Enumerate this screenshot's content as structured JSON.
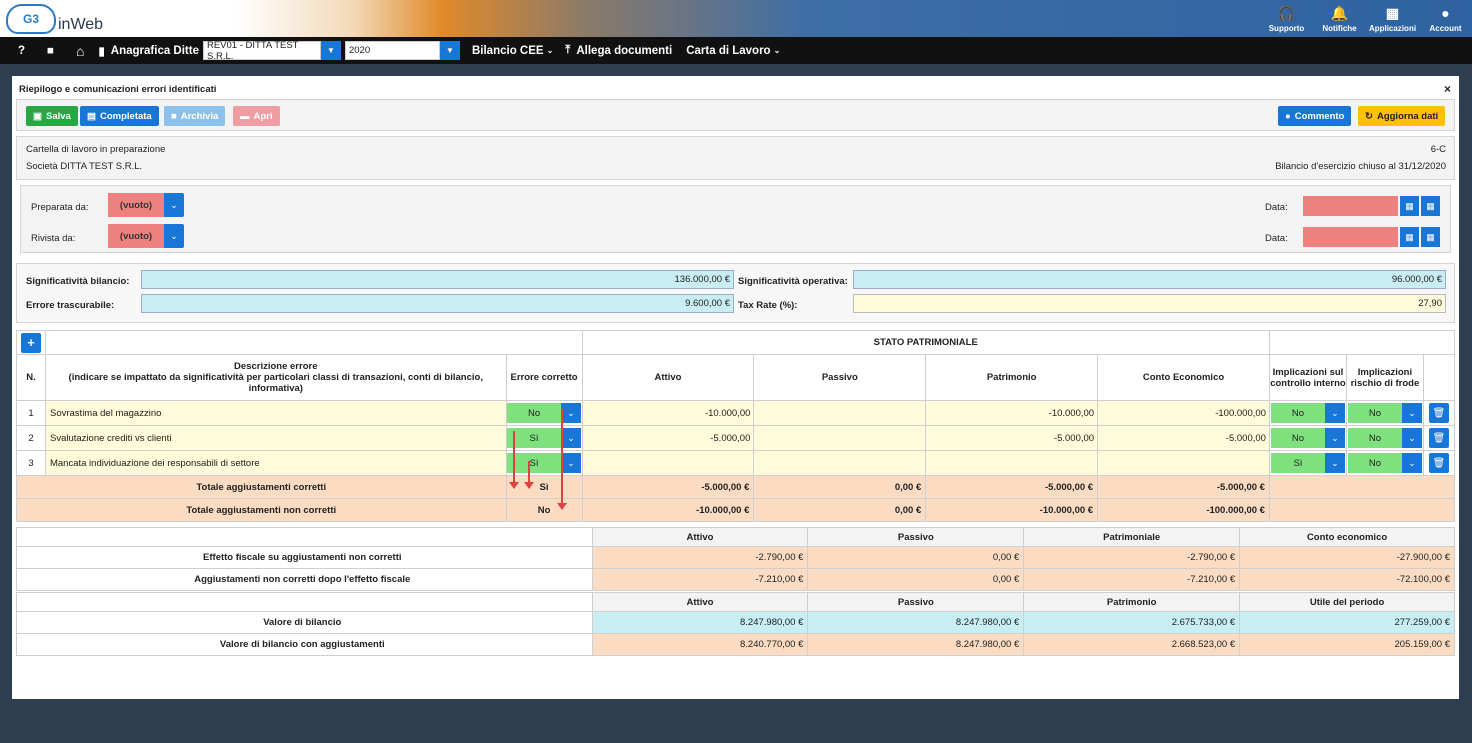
{
  "app": {
    "logo_text": "inWeb",
    "logo_mark": "G3"
  },
  "top_icons": [
    {
      "label": "Supporto",
      "icon": "headset-icon",
      "glyph": "🎧"
    },
    {
      "label": "Notifiche",
      "icon": "bell-icon",
      "glyph": "🔔"
    },
    {
      "label": "Applicazioni",
      "icon": "grid-icon",
      "glyph": "▦"
    },
    {
      "label": "Account",
      "icon": "user-icon",
      "glyph": "●"
    }
  ],
  "nav": {
    "help": "?",
    "video": "■",
    "home": "⌂",
    "anagrafica": "Anagrafica Ditte",
    "company_select": "REV01 - DITTA TEST S.R.L.",
    "year_select": "2020",
    "bilancio": "Bilancio CEE",
    "allega": "Allega documenti",
    "carta": "Carta di Lavoro"
  },
  "panel": {
    "title": "Riepilogo e comunicazioni errori identificati",
    "close": "×",
    "buttons": {
      "salva": "Salva",
      "completata": "Completata",
      "archivia": "Archivia",
      "apri": "Apri",
      "commento": "Commento",
      "aggiorna": "Aggiorna dati"
    },
    "info": {
      "stato": "Cartella di lavoro in preparazione",
      "codice": "6-C",
      "societa": "Società DITTA TEST S.R.L.",
      "bilancio": "Bilancio d'esercizio chiuso al 31/12/2020"
    },
    "prep": {
      "preparata_label": "Preparata da:",
      "rivista_label": "Rivista da:",
      "value": "(vuoto)",
      "data_label": "Data:"
    },
    "signif": {
      "bil_label": "Significatività bilancio:",
      "bil_value": "136.000,00 €",
      "op_label": "Significatività operativa:",
      "op_value": "96.000,00 €",
      "err_label": "Errore trascurabile:",
      "err_value": "9.600,00 €",
      "tax_label": "Tax Rate (%):",
      "tax_value": "27,90"
    }
  },
  "errors_table": {
    "add": "+",
    "group_header": "STATO PATRIMONIALE",
    "headers": {
      "n": "N.",
      "descr": "Descrizione errore\n(indicare se impattato da significatività per particolari classi di transazioni, conti di bilancio, informativa)",
      "corretto": "Errore corretto",
      "attivo": "Attivo",
      "passivo": "Passivo",
      "patrimonio": "Patrimonio",
      "ce": "Conto Economico",
      "impl_ci": "Implicazioni sul controllo interno",
      "impl_fr": "Implicazioni rischio di frode"
    },
    "rows": [
      {
        "n": "1",
        "descr": "Sovrastima del magazzino",
        "corretto": "No",
        "attivo": "-10.000,00",
        "passivo": "",
        "patrimonio": "-10.000,00",
        "ce": "-100.000,00",
        "ci": "No",
        "fr": "No"
      },
      {
        "n": "2",
        "descr": "Svalutazione crediti vs clienti",
        "corretto": "Sì",
        "attivo": "-5.000,00",
        "passivo": "",
        "patrimonio": "-5.000,00",
        "ce": "-5.000,00",
        "ci": "No",
        "fr": "No"
      },
      {
        "n": "3",
        "descr": "Mancata individuazione dei responsabili di settore",
        "corretto": "Sì",
        "attivo": "",
        "passivo": "",
        "patrimonio": "",
        "ce": "",
        "ci": "Sì",
        "fr": "No"
      }
    ],
    "totals": [
      {
        "label": "Totale aggiustamenti corretti",
        "flag": "Sì",
        "attivo": "-5.000,00 €",
        "passivo": "0,00 €",
        "patrimonio": "-5.000,00 €",
        "ce": "-5.000,00 €"
      },
      {
        "label": "Totale aggiustamenti non corretti",
        "flag": "No",
        "attivo": "-10.000,00 €",
        "passivo": "0,00 €",
        "patrimonio": "-10.000,00 €",
        "ce": "-100.000,00 €"
      }
    ]
  },
  "fiscal_table": {
    "headers": [
      "Attivo",
      "Passivo",
      "Patrimoniale",
      "Conto economico"
    ],
    "rows": [
      {
        "label": "Effetto fiscale su aggiustamenti non corretti",
        "v": [
          "-2.790,00 €",
          "0,00 €",
          "-2.790,00 €",
          "-27.900,00 €"
        ]
      },
      {
        "label": "Aggiustamenti non corretti dopo l'effetto fiscale",
        "v": [
          "-7.210,00 €",
          "0,00 €",
          "-7.210,00 €",
          "-72.100,00 €"
        ]
      }
    ]
  },
  "value_table": {
    "headers": [
      "Attivo",
      "Passivo",
      "Patrimonio",
      "Utile del periodo"
    ],
    "rows": [
      {
        "label": "Valore di bilancio",
        "v": [
          "8.247.980,00 €",
          "8.247.980,00 €",
          "2.675.733,00 €",
          "277.259,00 €"
        ]
      },
      {
        "label": "Valore di bilancio con aggiustamenti",
        "v": [
          "8.240.770,00 €",
          "8.247.980,00 €",
          "2.668.523,00 €",
          "205.159,00 €"
        ]
      }
    ]
  },
  "colors": {
    "primary": "#1877d6",
    "success": "#28a745",
    "warning": "#ffc107",
    "danger_light": "#ef8080",
    "input_cyan": "#c8eef3",
    "input_yellow": "#fdfbd9",
    "total_orange": "#fbdcc2",
    "green_select": "#7ee17e"
  }
}
